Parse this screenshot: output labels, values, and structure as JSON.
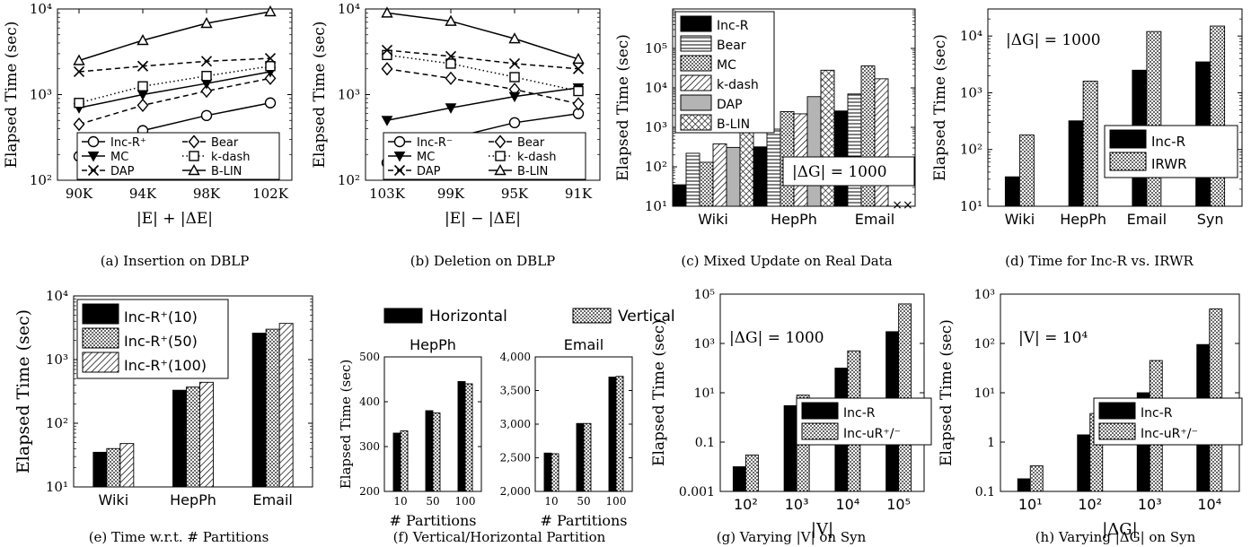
{
  "chart_data": [
    {
      "id": "a",
      "type": "line",
      "caption": "(a) Insertion on DBLP",
      "xlabel": "|E| + |ΔE|",
      "ylabel": "Elapsed Time (sec)",
      "categories": [
        "90K",
        "94K",
        "98K",
        "102K"
      ],
      "ylim": [
        100,
        10000
      ],
      "yscale": "log",
      "yticks": [
        {
          "v": 100,
          "label": "10²"
        },
        {
          "v": 1000,
          "label": "10³"
        },
        {
          "v": 10000,
          "label": "10⁴"
        }
      ],
      "legend_position": "bottom",
      "series": [
        {
          "name": "Inc-R⁺",
          "marker": "circle",
          "dash": "solid",
          "values": [
            190,
            380,
            570,
            800
          ]
        },
        {
          "name": "Bear",
          "marker": "diamond",
          "dash": "dashed",
          "values": [
            450,
            750,
            1100,
            1550
          ]
        },
        {
          "name": "MC",
          "marker": "triangle-down",
          "dash": "solid",
          "values": [
            700,
            1000,
            1350,
            1850
          ]
        },
        {
          "name": "k-dash",
          "marker": "square",
          "dash": "dotted",
          "values": [
            800,
            1250,
            1650,
            2150
          ]
        },
        {
          "name": "DAP",
          "marker": "x",
          "dash": "dashed",
          "values": [
            1850,
            2150,
            2450,
            2650
          ]
        },
        {
          "name": "B-LIN",
          "marker": "triangle",
          "dash": "solid",
          "values": [
            2500,
            4300,
            6800,
            9300
          ]
        }
      ]
    },
    {
      "id": "b",
      "type": "line",
      "caption": "(b) Deletion on DBLP",
      "xlabel": "|E| − |ΔE|",
      "ylabel": "Elapsed Time (sec)",
      "categories": [
        "103K",
        "99K",
        "95K",
        "91K"
      ],
      "ylim": [
        100,
        10000
      ],
      "yscale": "log",
      "yticks": [
        {
          "v": 100,
          "label": "10²"
        },
        {
          "v": 1000,
          "label": "10³"
        },
        {
          "v": 10000,
          "label": "10⁴"
        }
      ],
      "legend_position": "bottom",
      "series": [
        {
          "name": "Inc-R⁻",
          "marker": "circle",
          "dash": "solid",
          "values": [
            160,
            310,
            470,
            600
          ]
        },
        {
          "name": "Bear",
          "marker": "diamond",
          "dash": "dashed",
          "values": [
            2000,
            1550,
            1150,
            780
          ]
        },
        {
          "name": "MC",
          "marker": "triangle-down",
          "dash": "solid",
          "values": [
            500,
            700,
            950,
            1200
          ]
        },
        {
          "name": "k-dash",
          "marker": "square",
          "dash": "dotted",
          "values": [
            2900,
            2300,
            1600,
            1100
          ]
        },
        {
          "name": "DAP",
          "marker": "x",
          "dash": "dashed",
          "values": [
            3300,
            2800,
            2300,
            2000
          ]
        },
        {
          "name": "B-LIN",
          "marker": "triangle",
          "dash": "solid",
          "values": [
            9000,
            7200,
            4500,
            2600
          ]
        }
      ]
    },
    {
      "id": "c",
      "type": "bar",
      "caption": "(c) Mixed Update on Real Data",
      "ylabel": "Elapsed Time (sec)",
      "categories": [
        "Wiki",
        "HepPh",
        "Email"
      ],
      "ylim": [
        10,
        1000000
      ],
      "yscale": "log",
      "yticks": [
        {
          "v": 10,
          "label": "10¹"
        },
        {
          "v": 100,
          "label": "10²"
        },
        {
          "v": 1000,
          "label": "10³"
        },
        {
          "v": 10000,
          "label": "10⁴"
        },
        {
          "v": 100000,
          "label": "10⁵"
        }
      ],
      "annotation": "|ΔG| = 1000",
      "legend_position": "top-left",
      "series": [
        {
          "name": "Inc-R",
          "pattern": "solid",
          "values": [
            35,
            320,
            2600
          ]
        },
        {
          "name": "Bear",
          "pattern": "hlines",
          "values": [
            220,
            900,
            7000
          ]
        },
        {
          "name": "MC",
          "pattern": "dots",
          "values": [
            130,
            2500,
            36000
          ]
        },
        {
          "name": "k-dash",
          "pattern": "hatch",
          "values": [
            380,
            2200,
            17000
          ]
        },
        {
          "name": "DAP",
          "pattern": "gray",
          "values": [
            310,
            6000,
            null
          ]
        },
        {
          "name": "B-LIN",
          "pattern": "cross",
          "values": [
            900,
            28000,
            null
          ]
        }
      ],
      "missing_markers": [
        "××"
      ]
    },
    {
      "id": "d",
      "type": "bar",
      "caption": "(d) Time for Inc-R vs. IRWR",
      "ylabel": "Elapsed Time (sec)",
      "categories": [
        "Wiki",
        "HepPh",
        "Email",
        "Syn"
      ],
      "ylim": [
        10,
        30000
      ],
      "yscale": "log",
      "yticks": [
        {
          "v": 10,
          "label": "10¹"
        },
        {
          "v": 100,
          "label": "10²"
        },
        {
          "v": 1000,
          "label": "10³"
        },
        {
          "v": 10000,
          "label": "10⁴"
        }
      ],
      "annotation": "|ΔG| = 1000",
      "legend_position": "bottom-right",
      "series": [
        {
          "name": "Inc-R",
          "pattern": "solid",
          "values": [
            33,
            320,
            2500,
            3500
          ]
        },
        {
          "name": "IRWR",
          "pattern": "dots",
          "values": [
            180,
            1600,
            12000,
            15000
          ]
        }
      ]
    },
    {
      "id": "e",
      "type": "bar",
      "caption": "(e) Time w.r.t. # Partitions",
      "ylabel": "Elapsed Time (sec)",
      "categories": [
        "Wiki",
        "HepPh",
        "Email"
      ],
      "ylim": [
        10,
        10000
      ],
      "yscale": "log",
      "yticks": [
        {
          "v": 10,
          "label": "10¹"
        },
        {
          "v": 100,
          "label": "10²"
        },
        {
          "v": 1000,
          "label": "10³"
        },
        {
          "v": 10000,
          "label": "10⁴"
        }
      ],
      "legend_position": "top-left",
      "series": [
        {
          "name": "Inc-R⁺(10)",
          "pattern": "solid",
          "values": [
            35,
            330,
            2600
          ]
        },
        {
          "name": "Inc-R⁺(50)",
          "pattern": "dots",
          "values": [
            40,
            370,
            3000
          ]
        },
        {
          "name": "Inc-R⁺(100)",
          "pattern": "hatch",
          "values": [
            48,
            440,
            3700
          ]
        }
      ]
    },
    {
      "id": "f",
      "type": "bar",
      "caption": "(f) Vertical/Horizontal Partition",
      "legend": [
        {
          "name": "Horizontal",
          "pattern": "solid"
        },
        {
          "name": "Vertical",
          "pattern": "dots"
        }
      ],
      "panels": [
        {
          "title": "HepPh",
          "ylabel": "Elapsed Time (sec)",
          "xlabel": "# Partitions",
          "categories": [
            "10",
            "50",
            "100"
          ],
          "ylim": [
            200,
            500
          ],
          "yticks": [
            200,
            300,
            400,
            500
          ],
          "series": [
            {
              "name": "Horizontal",
              "values": [
                330,
                380,
                445
              ]
            },
            {
              "name": "Vertical",
              "values": [
                335,
                375,
                440
              ]
            }
          ]
        },
        {
          "title": "Email",
          "xlabel": "# Partitions",
          "categories": [
            "10",
            "50",
            "100"
          ],
          "ylim": [
            2000,
            4000
          ],
          "yticks": [
            2000,
            2500,
            3000,
            3500,
            4000
          ],
          "ytick_labels": [
            "2,000",
            "2,500",
            "3,000",
            "3,500",
            "4,000"
          ],
          "series": [
            {
              "name": "Horizontal",
              "values": [
                2570,
                3010,
                3700
              ]
            },
            {
              "name": "Vertical",
              "values": [
                2560,
                3010,
                3710
              ]
            }
          ]
        }
      ]
    },
    {
      "id": "g",
      "type": "bar",
      "caption": "(g) Varying |V| on Syn",
      "xlabel": "|V|",
      "ylabel": "Elapsed Time (sec)",
      "categories": [
        "10²",
        "10³",
        "10⁴",
        "10⁵"
      ],
      "ylim": [
        0.001,
        100000
      ],
      "yscale": "log",
      "yticks": [
        {
          "v": 0.001,
          "label": "0.001"
        },
        {
          "v": 0.1,
          "label": "0.1"
        },
        {
          "v": 10,
          "label": "10¹"
        },
        {
          "v": 1000,
          "label": "10³"
        },
        {
          "v": 100000,
          "label": "10⁵"
        }
      ],
      "annotation": "|ΔG| = 1000",
      "legend_position": "bottom-right",
      "series": [
        {
          "name": "Inc-R",
          "pattern": "solid",
          "values": [
            0.01,
            3,
            100,
            3000
          ]
        },
        {
          "name": "Inc-uR⁺/⁻",
          "pattern": "dots",
          "values": [
            0.03,
            8,
            500,
            40000
          ]
        }
      ]
    },
    {
      "id": "h",
      "type": "bar",
      "caption": "(h) Varying |ΔG| on Syn",
      "xlabel": "|ΔG|",
      "ylabel": "Elapsed Time (sec)",
      "categories": [
        "10¹",
        "10²",
        "10³",
        "10⁴"
      ],
      "ylim": [
        0.1,
        1000
      ],
      "yscale": "log",
      "yticks": [
        {
          "v": 0.1,
          "label": "0.1"
        },
        {
          "v": 1,
          "label": "1"
        },
        {
          "v": 10,
          "label": "10¹"
        },
        {
          "v": 100,
          "label": "10²"
        },
        {
          "v": 1000,
          "label": "10³"
        }
      ],
      "annotation": "|V| = 10⁴",
      "legend_position": "bottom-right",
      "series": [
        {
          "name": "Inc-R",
          "pattern": "solid",
          "values": [
            0.18,
            1.4,
            10,
            95
          ]
        },
        {
          "name": "Inc-uR⁺/⁻",
          "pattern": "dots",
          "values": [
            0.33,
            3.8,
            45,
            500
          ]
        }
      ]
    }
  ]
}
